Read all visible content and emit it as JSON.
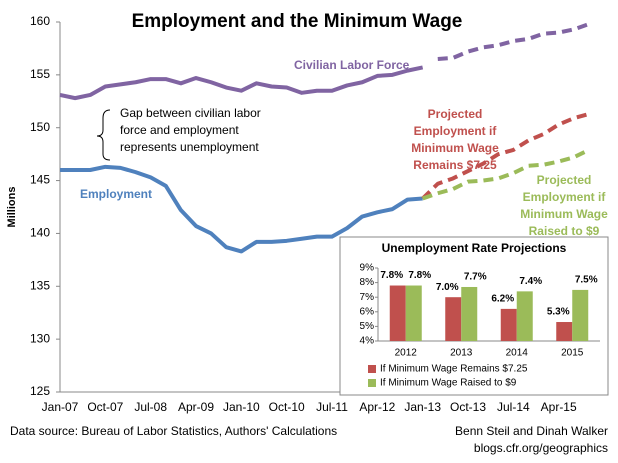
{
  "chart_data": [
    {
      "type": "line",
      "title": "Employment and the Minimum Wage",
      "y_label": "Millions",
      "annotation": "Gap between  civilian labor force and employment represents unemployment",
      "source": "Data source: Bureau of Labor Statistics, Authors' Calculations",
      "credit": [
        "Benn Steil and Dinah Walker",
        "blogs.cfr.org/geographics"
      ],
      "categories": [
        "Jan-07",
        null,
        null,
        "Oct-07",
        null,
        null,
        "Jul-08",
        null,
        null,
        "Apr-09",
        null,
        null,
        "Jan-10",
        null,
        null,
        "Oct-10",
        null,
        null,
        "Jul-11",
        null,
        null,
        "Apr-12",
        null,
        null,
        "Jan-13",
        null,
        null,
        "Oct-13",
        null,
        null,
        "Jul-14",
        null,
        null,
        "Apr-15",
        null,
        null
      ],
      "ylim": [
        125,
        160
      ],
      "yticks": [
        125,
        130,
        135,
        140,
        145,
        150,
        155,
        160
      ],
      "grid": false,
      "series": [
        {
          "name": "Civilian Labor Force",
          "color": "#8064a2",
          "dash_from": 25,
          "values": [
            153.1,
            152.8,
            153.1,
            153.9,
            154.1,
            154.3,
            154.6,
            154.6,
            154.2,
            154.7,
            154.3,
            153.8,
            153.5,
            154.2,
            153.9,
            153.8,
            153.3,
            153.5,
            153.5,
            154.0,
            154.3,
            154.9,
            155.0,
            155.4,
            155.7,
            156.5,
            156.6,
            157.2,
            157.6,
            157.8,
            158.2,
            158.4,
            158.9,
            159.0,
            159.3,
            159.8
          ]
        },
        {
          "name": "Employment",
          "color": "#4f81bd",
          "values": [
            146.0,
            146.0,
            146.0,
            146.3,
            146.2,
            145.8,
            145.3,
            144.5,
            142.2,
            140.7,
            140.0,
            138.7,
            138.3,
            139.2,
            139.2,
            139.3,
            139.5,
            139.7,
            139.7,
            140.5,
            141.6,
            142.0,
            142.3,
            143.2,
            143.3,
            null,
            null,
            null,
            null,
            null,
            null,
            null,
            null,
            null,
            null,
            null
          ]
        },
        {
          "name": "Projected Employment if Minimum Wage Remains $7.25",
          "color": "#c0504d",
          "dash_from": 0,
          "values": [
            null,
            null,
            null,
            null,
            null,
            null,
            null,
            null,
            null,
            null,
            null,
            null,
            null,
            null,
            null,
            null,
            null,
            null,
            null,
            null,
            null,
            null,
            null,
            null,
            143.3,
            144.7,
            145.2,
            145.9,
            146.6,
            147.5,
            147.9,
            148.8,
            149.4,
            150.3,
            150.9,
            151.3
          ]
        },
        {
          "name": "Projected Employment if Minimum Wage Raised to $9",
          "color": "#9bbb59",
          "dash_from": 0,
          "values": [
            null,
            null,
            null,
            null,
            null,
            null,
            null,
            null,
            null,
            null,
            null,
            null,
            null,
            null,
            null,
            null,
            null,
            null,
            null,
            null,
            null,
            null,
            null,
            null,
            143.3,
            143.8,
            144.2,
            144.9,
            145.0,
            145.2,
            145.7,
            146.4,
            146.5,
            146.8,
            147.2,
            147.9
          ]
        }
      ]
    },
    {
      "type": "bar",
      "title": "Unemployment Rate Projections",
      "categories": [
        "2012",
        "2013",
        "2014",
        "2015"
      ],
      "ylim": [
        4,
        9
      ],
      "yticks": [
        {
          "value": 4,
          "label": "4%"
        },
        {
          "value": 5,
          "label": "5%"
        },
        {
          "value": 6,
          "label": "6%"
        },
        {
          "value": 7,
          "label": "7%"
        },
        {
          "value": 8,
          "label": "8%"
        },
        {
          "value": 9,
          "label": "9%"
        }
      ],
      "series": [
        {
          "name": "If Minimum Wage Remains $7.25",
          "color": "#c0504d",
          "values": [
            7.8,
            7.0,
            6.2,
            5.3
          ],
          "value_labels": [
            "7.8%",
            "7.0%",
            "6.2%",
            "5.3%"
          ]
        },
        {
          "name": "If Minimum Wage Raised to $9",
          "color": "#9bbb59",
          "values": [
            7.8,
            7.7,
            7.4,
            7.5
          ],
          "value_labels": [
            "7.8%",
            "7.7%",
            "7.4%",
            "7.5%"
          ]
        }
      ]
    }
  ]
}
